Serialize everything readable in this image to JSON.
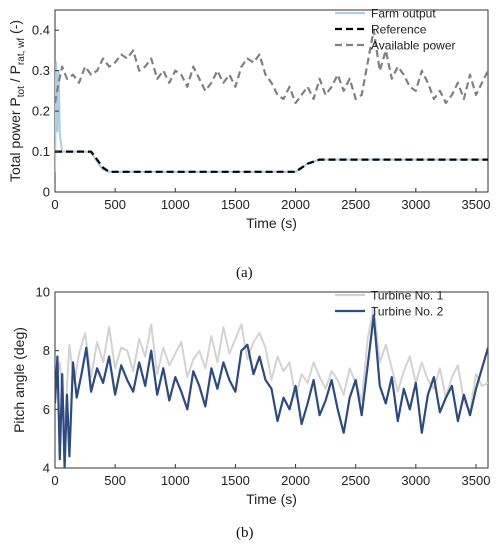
{
  "panels": [
    {
      "label": "(a)",
      "chart_data": {
        "type": "line",
        "xlabel": "Time (s)",
        "ylabel": "Total power P_tot / P_rat, wf (-)",
        "xlim": [
          0,
          3600
        ],
        "ylim": [
          0,
          0.45
        ],
        "xticks": [
          0,
          500,
          1000,
          1500,
          2000,
          2500,
          3000,
          3500
        ],
        "yticks": [
          0,
          0.1,
          0.2,
          0.3,
          0.4
        ],
        "legend_placement": "top-right",
        "series": [
          {
            "name": "Farm output",
            "color": "#a9cdea",
            "style": "solid",
            "x": [
              0,
              10,
              20,
              30,
              40,
              60,
              80,
              100,
              150,
              200,
              250,
              300,
              350,
              400,
              450,
              500,
              1000,
              1500,
              1900,
              2000,
              2100,
              2200,
              2300,
              3000,
              3600
            ],
            "y": [
              0.05,
              0.32,
              0.15,
              0.3,
              0.14,
              0.1,
              0.1,
              0.1,
              0.1,
              0.1,
              0.1,
              0.098,
              0.075,
              0.055,
              0.05,
              0.05,
              0.05,
              0.05,
              0.05,
              0.05,
              0.07,
              0.08,
              0.08,
              0.08,
              0.08
            ]
          },
          {
            "name": "Reference",
            "color": "#000000",
            "style": "dashed",
            "x": [
              0,
              300,
              350,
              400,
              450,
              500,
              1000,
              1500,
              2000,
              2100,
              2200,
              3000,
              3600
            ],
            "y": [
              0.1,
              0.1,
              0.08,
              0.06,
              0.05,
              0.05,
              0.05,
              0.05,
              0.05,
              0.07,
              0.08,
              0.08,
              0.08
            ]
          },
          {
            "name": "Available power",
            "color": "#808080",
            "style": "dashed",
            "x": [
              0,
              30,
              60,
              100,
              150,
              200,
              250,
              300,
              350,
              400,
              450,
              500,
              550,
              600,
              650,
              700,
              750,
              800,
              850,
              900,
              950,
              1000,
              1050,
              1100,
              1150,
              1200,
              1250,
              1300,
              1350,
              1400,
              1450,
              1500,
              1550,
              1600,
              1650,
              1700,
              1750,
              1800,
              1850,
              1900,
              1950,
              2000,
              2050,
              2100,
              2150,
              2200,
              2250,
              2300,
              2350,
              2400,
              2450,
              2500,
              2550,
              2600,
              2650,
              2700,
              2750,
              2800,
              2850,
              2900,
              2950,
              3000,
              3050,
              3100,
              3150,
              3200,
              3250,
              3300,
              3350,
              3400,
              3450,
              3500,
              3550,
              3600
            ],
            "y": [
              0.22,
              0.27,
              0.31,
              0.28,
              0.29,
              0.27,
              0.31,
              0.29,
              0.3,
              0.33,
              0.31,
              0.32,
              0.34,
              0.33,
              0.35,
              0.3,
              0.31,
              0.33,
              0.28,
              0.3,
              0.27,
              0.3,
              0.29,
              0.26,
              0.31,
              0.28,
              0.25,
              0.27,
              0.3,
              0.27,
              0.29,
              0.26,
              0.31,
              0.33,
              0.32,
              0.34,
              0.29,
              0.27,
              0.24,
              0.23,
              0.26,
              0.22,
              0.24,
              0.26,
              0.23,
              0.28,
              0.24,
              0.26,
              0.29,
              0.25,
              0.28,
              0.23,
              0.24,
              0.32,
              0.4,
              0.3,
              0.35,
              0.28,
              0.31,
              0.29,
              0.26,
              0.25,
              0.3,
              0.27,
              0.23,
              0.25,
              0.22,
              0.24,
              0.27,
              0.23,
              0.29,
              0.24,
              0.27,
              0.3
            ]
          }
        ]
      }
    },
    {
      "label": "(b)",
      "chart_data": {
        "type": "line",
        "xlabel": "Time (s)",
        "ylabel": "Pitch angle (deg)",
        "xlim": [
          0,
          3600
        ],
        "ylim": [
          4,
          10
        ],
        "xticks": [
          0,
          500,
          1000,
          1500,
          2000,
          2500,
          3000,
          3500
        ],
        "yticks": [
          4,
          6,
          8,
          10
        ],
        "legend_placement": "top-right",
        "series": [
          {
            "name": "Turbine No. 1",
            "color": "#d3d3d3",
            "style": "solid",
            "x": [
              0,
              40,
              80,
              120,
              160,
              200,
              250,
              300,
              350,
              400,
              450,
              500,
              550,
              600,
              650,
              700,
              750,
              800,
              850,
              900,
              950,
              1000,
              1050,
              1100,
              1150,
              1200,
              1250,
              1300,
              1350,
              1400,
              1450,
              1500,
              1550,
              1600,
              1650,
              1700,
              1750,
              1800,
              1850,
              1900,
              1950,
              2000,
              2050,
              2100,
              2150,
              2200,
              2250,
              2300,
              2350,
              2400,
              2450,
              2500,
              2550,
              2600,
              2650,
              2700,
              2750,
              2800,
              2850,
              2900,
              2950,
              3000,
              3050,
              3100,
              3150,
              3200,
              3250,
              3300,
              3350,
              3400,
              3450,
              3500,
              3550,
              3600
            ],
            "y": [
              6.8,
              7.6,
              5.4,
              8.2,
              6.9,
              7.9,
              8.6,
              7.1,
              8.3,
              7.6,
              8.8,
              7.4,
              8.1,
              8.0,
              7.3,
              8.4,
              7.8,
              8.9,
              7.2,
              8.1,
              7.5,
              7.9,
              8.3,
              7.1,
              7.7,
              8.0,
              7.4,
              8.5,
              7.6,
              8.8,
              7.9,
              8.4,
              8.9,
              7.7,
              8.3,
              8.6,
              8.1,
              7.0,
              7.8,
              7.3,
              7.6,
              6.4,
              7.2,
              6.9,
              7.6,
              7.1,
              6.7,
              7.3,
              7.0,
              6.5,
              7.4,
              6.9,
              6.3,
              8.4,
              9.5,
              7.6,
              8.2,
              7.4,
              6.6,
              7.3,
              7.8,
              6.9,
              7.6,
              7.0,
              6.7,
              7.4,
              6.4,
              7.1,
              7.5,
              6.3,
              5.9,
              7.2,
              6.8,
              6.9
            ]
          },
          {
            "name": "Turbine No. 2",
            "color": "#2e4a82",
            "style": "solid",
            "x": [
              0,
              20,
              40,
              60,
              80,
              100,
              120,
              150,
              180,
              220,
              260,
              300,
              350,
              400,
              450,
              500,
              550,
              600,
              650,
              700,
              750,
              800,
              850,
              900,
              950,
              1000,
              1050,
              1100,
              1150,
              1200,
              1250,
              1300,
              1350,
              1400,
              1450,
              1500,
              1550,
              1600,
              1650,
              1700,
              1750,
              1800,
              1850,
              1900,
              1950,
              2000,
              2050,
              2100,
              2150,
              2200,
              2250,
              2300,
              2350,
              2400,
              2450,
              2500,
              2550,
              2600,
              2650,
              2700,
              2750,
              2800,
              2850,
              2900,
              2950,
              3000,
              3050,
              3100,
              3150,
              3200,
              3250,
              3300,
              3350,
              3400,
              3450,
              3500,
              3550,
              3600
            ],
            "y": [
              6.2,
              7.8,
              4.3,
              7.2,
              4.0,
              6.5,
              4.4,
              7.6,
              6.4,
              7.2,
              8.1,
              6.6,
              7.4,
              6.9,
              7.8,
              6.5,
              7.5,
              7.0,
              6.6,
              7.6,
              6.8,
              8.0,
              6.5,
              7.4,
              6.3,
              7.1,
              6.6,
              6.0,
              7.3,
              6.8,
              6.1,
              7.4,
              6.7,
              7.6,
              7.0,
              6.6,
              8.0,
              8.2,
              7.2,
              7.8,
              7.0,
              6.7,
              5.6,
              6.4,
              6.0,
              6.8,
              5.5,
              6.2,
              7.0,
              5.8,
              6.3,
              7.0,
              6.0,
              5.2,
              6.4,
              7.0,
              5.8,
              7.5,
              9.2,
              6.8,
              6.2,
              7.1,
              5.6,
              6.7,
              6.0,
              6.9,
              5.2,
              6.5,
              7.1,
              5.9,
              6.4,
              6.8,
              5.6,
              6.5,
              5.8,
              6.7,
              7.4,
              8.1
            ]
          }
        ]
      }
    }
  ]
}
